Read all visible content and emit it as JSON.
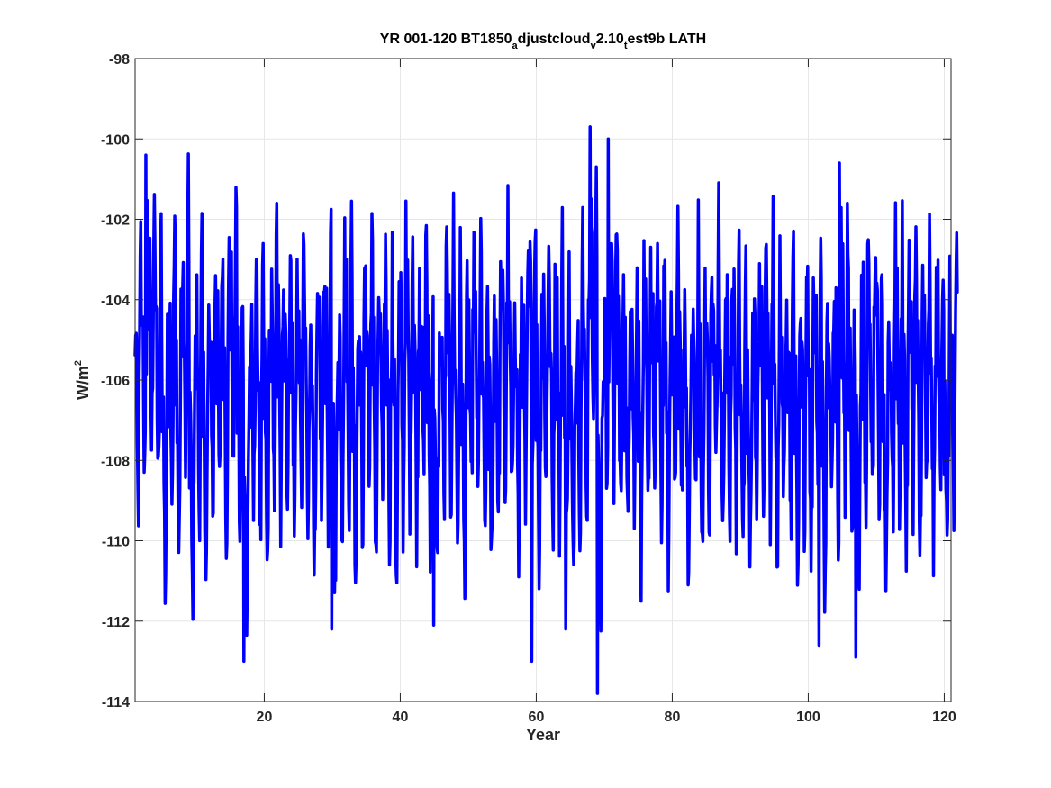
{
  "chart_data": {
    "type": "line",
    "title": {
      "parts": [
        {
          "text": "YR 001-120 BT1850",
          "pos": "base"
        },
        {
          "text": "a",
          "pos": "sub"
        },
        {
          "text": "djustcloud",
          "pos": "base"
        },
        {
          "text": "v",
          "pos": "sub"
        },
        {
          "text": "2.10",
          "pos": "base"
        },
        {
          "text": "t",
          "pos": "sub"
        },
        {
          "text": "est9b LATH",
          "pos": "base"
        }
      ]
    },
    "xlabel": "Year",
    "ylabel": {
      "base": "W/m",
      "sup": "2"
    },
    "xlim": [
      1,
      121
    ],
    "ylim": [
      -114,
      -98
    ],
    "xticks": [
      20,
      40,
      60,
      80,
      100,
      120
    ],
    "yticks": [
      -114,
      -112,
      -110,
      -108,
      -106,
      -104,
      -102,
      -100,
      -98
    ],
    "grid": true,
    "series": [
      {
        "color": "#0000ff",
        "line_width": 3.5,
        "samples_per_year": 12,
        "annual_cycle": [
          -106.2,
          -104.8,
          -105.6,
          -107.0,
          -108.5,
          -109.6,
          -109.2,
          -107.4,
          -105.8,
          -104.2,
          -103.1,
          -104.6
        ],
        "yearly_offsets": [
          0.35,
          0.8,
          1.7,
          0.6,
          -1.1,
          0.9,
          -0.6,
          1.2,
          -1.4,
          0.4,
          -1.2,
          0.3,
          0.5,
          0.1,
          1.4,
          -0.4,
          -2.0,
          0.3,
          -0.2,
          -1.0,
          0.6,
          0.2,
          0.7,
          -0.1,
          0.6,
          -0.3,
          -1.1,
          0.4,
          0.5,
          -1.3,
          0.2,
          0.6,
          -0.7,
          0.2,
          0.9,
          -0.5,
          0.4,
          0.1,
          -0.9,
          0.3,
          0.8,
          0.2,
          0.9,
          -0.3,
          -1.2,
          0.4,
          0.6,
          -0.2,
          -0.8,
          0.3,
          0.5,
          -0.4,
          -0.9,
          0.2,
          0.7,
          0.1,
          -0.6,
          0.2,
          1.3,
          -0.6,
          0.8,
          0.0,
          0.3,
          -0.5,
          -1.2,
          0.4,
          0.6,
          1.9,
          -2.0,
          0.5,
          1.2,
          0.2,
          -0.3,
          0.4,
          -0.6,
          0.1,
          0.5,
          0.3,
          -0.5,
          0.7,
          0.1,
          -1.1,
          0.4,
          -0.8,
          0.3,
          0.8,
          -0.2,
          0.4,
          0.3,
          -0.5,
          -0.9,
          0.2,
          0.6,
          0.5,
          -0.3,
          0.2,
          0.4,
          -0.8,
          0.3,
          -0.4,
          0.5,
          -1.2,
          0.2,
          0.3,
          1.2,
          -0.2,
          -1.0,
          0.4,
          0.3,
          0.5,
          -1.0,
          0.2,
          0.6,
          -0.3,
          0.8,
          -0.6,
          0.4,
          -0.4,
          0.7,
          -0.9,
          0.2
        ],
        "extremes": [
          {
            "x": 2.6,
            "y": -100.4
          },
          {
            "x": 17.0,
            "y": -113.0
          },
          {
            "x": 67.9,
            "y": -99.7
          },
          {
            "x": 69.0,
            "y": -113.8
          },
          {
            "x": 70.6,
            "y": -100.0
          },
          {
            "x": 104.6,
            "y": -100.6
          },
          {
            "x": 107.0,
            "y": -112.9
          },
          {
            "x": 101.6,
            "y": -112.6
          },
          {
            "x": 59.3,
            "y": -113.0
          },
          {
            "x": 29.9,
            "y": -112.2
          },
          {
            "x": 44.9,
            "y": -112.1
          },
          {
            "x": 64.3,
            "y": -112.2
          }
        ]
      }
    ]
  }
}
